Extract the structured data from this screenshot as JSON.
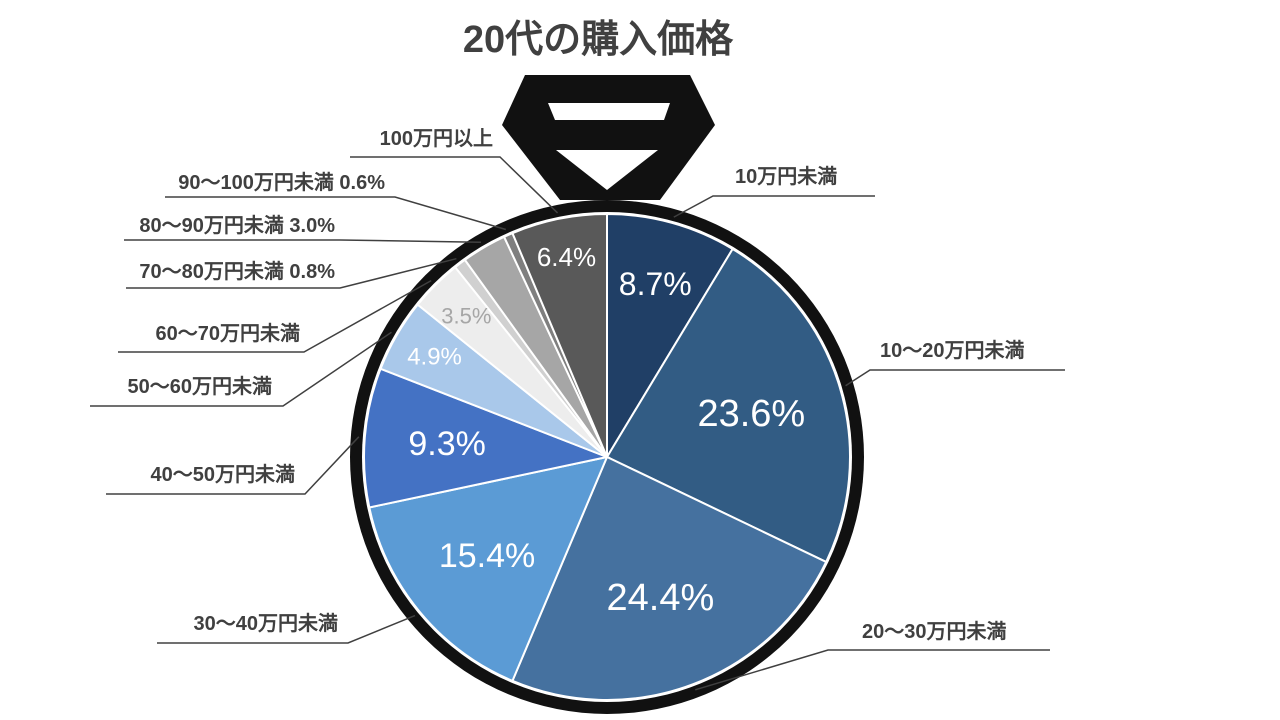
{
  "chart_data": {
    "type": "pie",
    "title": "20代の購入価格",
    "start_angle_deg": 0,
    "direction": "clockwise",
    "slices": [
      {
        "label": "10万円未満",
        "value": 8.7,
        "value_label": "8.7%",
        "color": "#203f66",
        "text_color": "#ffffff"
      },
      {
        "label": "10〜20万円未満",
        "value": 23.6,
        "value_label": "23.6%",
        "color": "#325c84",
        "text_color": "#ffffff"
      },
      {
        "label": "20〜30万円未満",
        "value": 24.4,
        "value_label": "24.4%",
        "color": "#45719f",
        "text_color": "#ffffff"
      },
      {
        "label": "30〜40万円未満",
        "value": 15.4,
        "value_label": "15.4%",
        "color": "#5b9bd5",
        "text_color": "#ffffff"
      },
      {
        "label": "40〜50万円未満",
        "value": 9.3,
        "value_label": "9.3%",
        "color": "#4472c4",
        "text_color": "#ffffff"
      },
      {
        "label": "50〜60万円未満",
        "value": 4.9,
        "value_label": "4.9%",
        "color": "#a9c8ea",
        "text_color": "#ffffff"
      },
      {
        "label": "60〜70万円未満",
        "value": 3.5,
        "value_label": "3.5%",
        "color": "#ededed",
        "text_color": "#a6a6a6"
      },
      {
        "label": "70〜80万円未満 0.8%",
        "value": 0.8,
        "value_label": "",
        "color": "#d0d0d0",
        "text_color": "#ffffff"
      },
      {
        "label": "80〜90万円未満 3.0%",
        "value": 3.0,
        "value_label": "",
        "color": "#a6a6a6",
        "text_color": "#ffffff"
      },
      {
        "label": "90〜100万円未満 0.6%",
        "value": 0.6,
        "value_label": "",
        "color": "#7f7f7f",
        "text_color": "#ffffff"
      },
      {
        "label": "100万円以上",
        "value": 6.4,
        "value_label": "6.4%",
        "color": "#595959",
        "text_color": "#ffffff"
      }
    ],
    "legend": "none"
  },
  "colors": {
    "frame": "#111111",
    "label_text": "#404040",
    "leader_line": "#404040"
  }
}
